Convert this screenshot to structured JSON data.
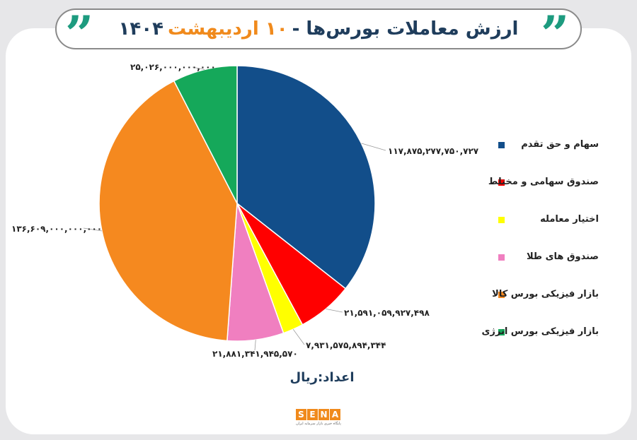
{
  "header": {
    "title_main": "ارزش معاملات بورس‌ها -",
    "title_highlight": "۱۰ اردیبهشت",
    "title_year": "۱۴۰۴",
    "quote_glyph": "”"
  },
  "unit_label": "اعداد:ریال",
  "logo": {
    "letters": [
      "S",
      "E",
      "N",
      "A"
    ],
    "tagline": "پایگاه خبری بازار سرمایه ایران"
  },
  "chart_data": {
    "type": "pie",
    "title": "ارزش معاملات بورس‌ها - ۱۰ اردیبهشت ۱۴۰۴",
    "unit": "اعداد:ریال",
    "legend_position": "right",
    "slices": [
      {
        "name": "سهام و حق تقدم",
        "value": 117875277750727,
        "label": "۱۱۷,۸۷۵,۲۷۷,۷۵۰,۷۲۷",
        "color": "#124e8a"
      },
      {
        "name": "صندوق سهامی و مختلط",
        "value": 21591059927498,
        "label": "۲۱,۵۹۱,۰۵۹,۹۲۷,۴۹۸",
        "color": "#ff0000"
      },
      {
        "name": "اختیار معامله",
        "value": 7931575894344,
        "label": "۷,۹۳۱,۵۷۵,۸۹۴,۳۴۴",
        "color": "#ffff00"
      },
      {
        "name": "صندوق های طلا",
        "value": 21881341945570,
        "label": "۲۱,۸۸۱,۳۴۱,۹۴۵,۵۷۰",
        "color": "#f07fc0"
      },
      {
        "name": "بازار فیزیکی بورس کالا",
        "value": 136609000000000,
        "label": "۱۳۶,۶۰۹,۰۰۰,۰۰۰,۰۰۰",
        "color": "#f5891f"
      },
      {
        "name": "بازار فیزیکی بورس انرژی",
        "value": 25026000000000,
        "label": "۲۵,۰۲۶,۰۰۰,۰۰۰,۰۰۰",
        "color": "#15a85a"
      }
    ]
  }
}
